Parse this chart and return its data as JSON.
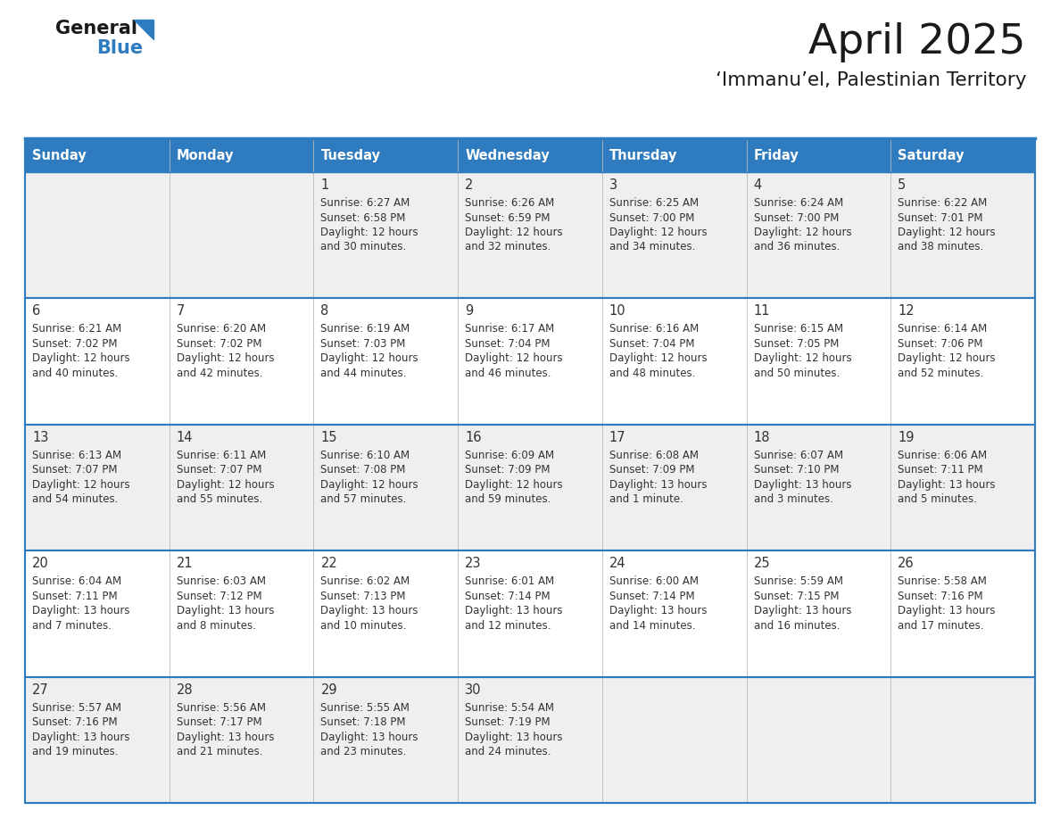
{
  "title": "April 2025",
  "subtitle": "‘Immanu’el, Palestinian Territory",
  "days_of_week": [
    "Sunday",
    "Monday",
    "Tuesday",
    "Wednesday",
    "Thursday",
    "Friday",
    "Saturday"
  ],
  "header_bg": "#2E7BBF",
  "header_text": "#FFFFFF",
  "row_bg_light": "#EFEFEF",
  "row_bg_white": "#FFFFFF",
  "border_color": "#2E7BBF",
  "cell_border_color": "#AAAAAA",
  "text_color": "#333333",
  "title_color": "#1a1a1a",
  "logo_general_color": "#1a1a1a",
  "logo_blue_color": "#2E7BBF",
  "logo_triangle_color": "#2E7BBF",
  "calendar_data": [
    [
      {
        "day": "",
        "lines": []
      },
      {
        "day": "",
        "lines": []
      },
      {
        "day": "1",
        "lines": [
          "Sunrise: 6:27 AM",
          "Sunset: 6:58 PM",
          "Daylight: 12 hours",
          "and 30 minutes."
        ]
      },
      {
        "day": "2",
        "lines": [
          "Sunrise: 6:26 AM",
          "Sunset: 6:59 PM",
          "Daylight: 12 hours",
          "and 32 minutes."
        ]
      },
      {
        "day": "3",
        "lines": [
          "Sunrise: 6:25 AM",
          "Sunset: 7:00 PM",
          "Daylight: 12 hours",
          "and 34 minutes."
        ]
      },
      {
        "day": "4",
        "lines": [
          "Sunrise: 6:24 AM",
          "Sunset: 7:00 PM",
          "Daylight: 12 hours",
          "and 36 minutes."
        ]
      },
      {
        "day": "5",
        "lines": [
          "Sunrise: 6:22 AM",
          "Sunset: 7:01 PM",
          "Daylight: 12 hours",
          "and 38 minutes."
        ]
      }
    ],
    [
      {
        "day": "6",
        "lines": [
          "Sunrise: 6:21 AM",
          "Sunset: 7:02 PM",
          "Daylight: 12 hours",
          "and 40 minutes."
        ]
      },
      {
        "day": "7",
        "lines": [
          "Sunrise: 6:20 AM",
          "Sunset: 7:02 PM",
          "Daylight: 12 hours",
          "and 42 minutes."
        ]
      },
      {
        "day": "8",
        "lines": [
          "Sunrise: 6:19 AM",
          "Sunset: 7:03 PM",
          "Daylight: 12 hours",
          "and 44 minutes."
        ]
      },
      {
        "day": "9",
        "lines": [
          "Sunrise: 6:17 AM",
          "Sunset: 7:04 PM",
          "Daylight: 12 hours",
          "and 46 minutes."
        ]
      },
      {
        "day": "10",
        "lines": [
          "Sunrise: 6:16 AM",
          "Sunset: 7:04 PM",
          "Daylight: 12 hours",
          "and 48 minutes."
        ]
      },
      {
        "day": "11",
        "lines": [
          "Sunrise: 6:15 AM",
          "Sunset: 7:05 PM",
          "Daylight: 12 hours",
          "and 50 minutes."
        ]
      },
      {
        "day": "12",
        "lines": [
          "Sunrise: 6:14 AM",
          "Sunset: 7:06 PM",
          "Daylight: 12 hours",
          "and 52 minutes."
        ]
      }
    ],
    [
      {
        "day": "13",
        "lines": [
          "Sunrise: 6:13 AM",
          "Sunset: 7:07 PM",
          "Daylight: 12 hours",
          "and 54 minutes."
        ]
      },
      {
        "day": "14",
        "lines": [
          "Sunrise: 6:11 AM",
          "Sunset: 7:07 PM",
          "Daylight: 12 hours",
          "and 55 minutes."
        ]
      },
      {
        "day": "15",
        "lines": [
          "Sunrise: 6:10 AM",
          "Sunset: 7:08 PM",
          "Daylight: 12 hours",
          "and 57 minutes."
        ]
      },
      {
        "day": "16",
        "lines": [
          "Sunrise: 6:09 AM",
          "Sunset: 7:09 PM",
          "Daylight: 12 hours",
          "and 59 minutes."
        ]
      },
      {
        "day": "17",
        "lines": [
          "Sunrise: 6:08 AM",
          "Sunset: 7:09 PM",
          "Daylight: 13 hours",
          "and 1 minute."
        ]
      },
      {
        "day": "18",
        "lines": [
          "Sunrise: 6:07 AM",
          "Sunset: 7:10 PM",
          "Daylight: 13 hours",
          "and 3 minutes."
        ]
      },
      {
        "day": "19",
        "lines": [
          "Sunrise: 6:06 AM",
          "Sunset: 7:11 PM",
          "Daylight: 13 hours",
          "and 5 minutes."
        ]
      }
    ],
    [
      {
        "day": "20",
        "lines": [
          "Sunrise: 6:04 AM",
          "Sunset: 7:11 PM",
          "Daylight: 13 hours",
          "and 7 minutes."
        ]
      },
      {
        "day": "21",
        "lines": [
          "Sunrise: 6:03 AM",
          "Sunset: 7:12 PM",
          "Daylight: 13 hours",
          "and 8 minutes."
        ]
      },
      {
        "day": "22",
        "lines": [
          "Sunrise: 6:02 AM",
          "Sunset: 7:13 PM",
          "Daylight: 13 hours",
          "and 10 minutes."
        ]
      },
      {
        "day": "23",
        "lines": [
          "Sunrise: 6:01 AM",
          "Sunset: 7:14 PM",
          "Daylight: 13 hours",
          "and 12 minutes."
        ]
      },
      {
        "day": "24",
        "lines": [
          "Sunrise: 6:00 AM",
          "Sunset: 7:14 PM",
          "Daylight: 13 hours",
          "and 14 minutes."
        ]
      },
      {
        "day": "25",
        "lines": [
          "Sunrise: 5:59 AM",
          "Sunset: 7:15 PM",
          "Daylight: 13 hours",
          "and 16 minutes."
        ]
      },
      {
        "day": "26",
        "lines": [
          "Sunrise: 5:58 AM",
          "Sunset: 7:16 PM",
          "Daylight: 13 hours",
          "and 17 minutes."
        ]
      }
    ],
    [
      {
        "day": "27",
        "lines": [
          "Sunrise: 5:57 AM",
          "Sunset: 7:16 PM",
          "Daylight: 13 hours",
          "and 19 minutes."
        ]
      },
      {
        "day": "28",
        "lines": [
          "Sunrise: 5:56 AM",
          "Sunset: 7:17 PM",
          "Daylight: 13 hours",
          "and 21 minutes."
        ]
      },
      {
        "day": "29",
        "lines": [
          "Sunrise: 5:55 AM",
          "Sunset: 7:18 PM",
          "Daylight: 13 hours",
          "and 23 minutes."
        ]
      },
      {
        "day": "30",
        "lines": [
          "Sunrise: 5:54 AM",
          "Sunset: 7:19 PM",
          "Daylight: 13 hours",
          "and 24 minutes."
        ]
      },
      {
        "day": "",
        "lines": []
      },
      {
        "day": "",
        "lines": []
      },
      {
        "day": "",
        "lines": []
      }
    ]
  ]
}
